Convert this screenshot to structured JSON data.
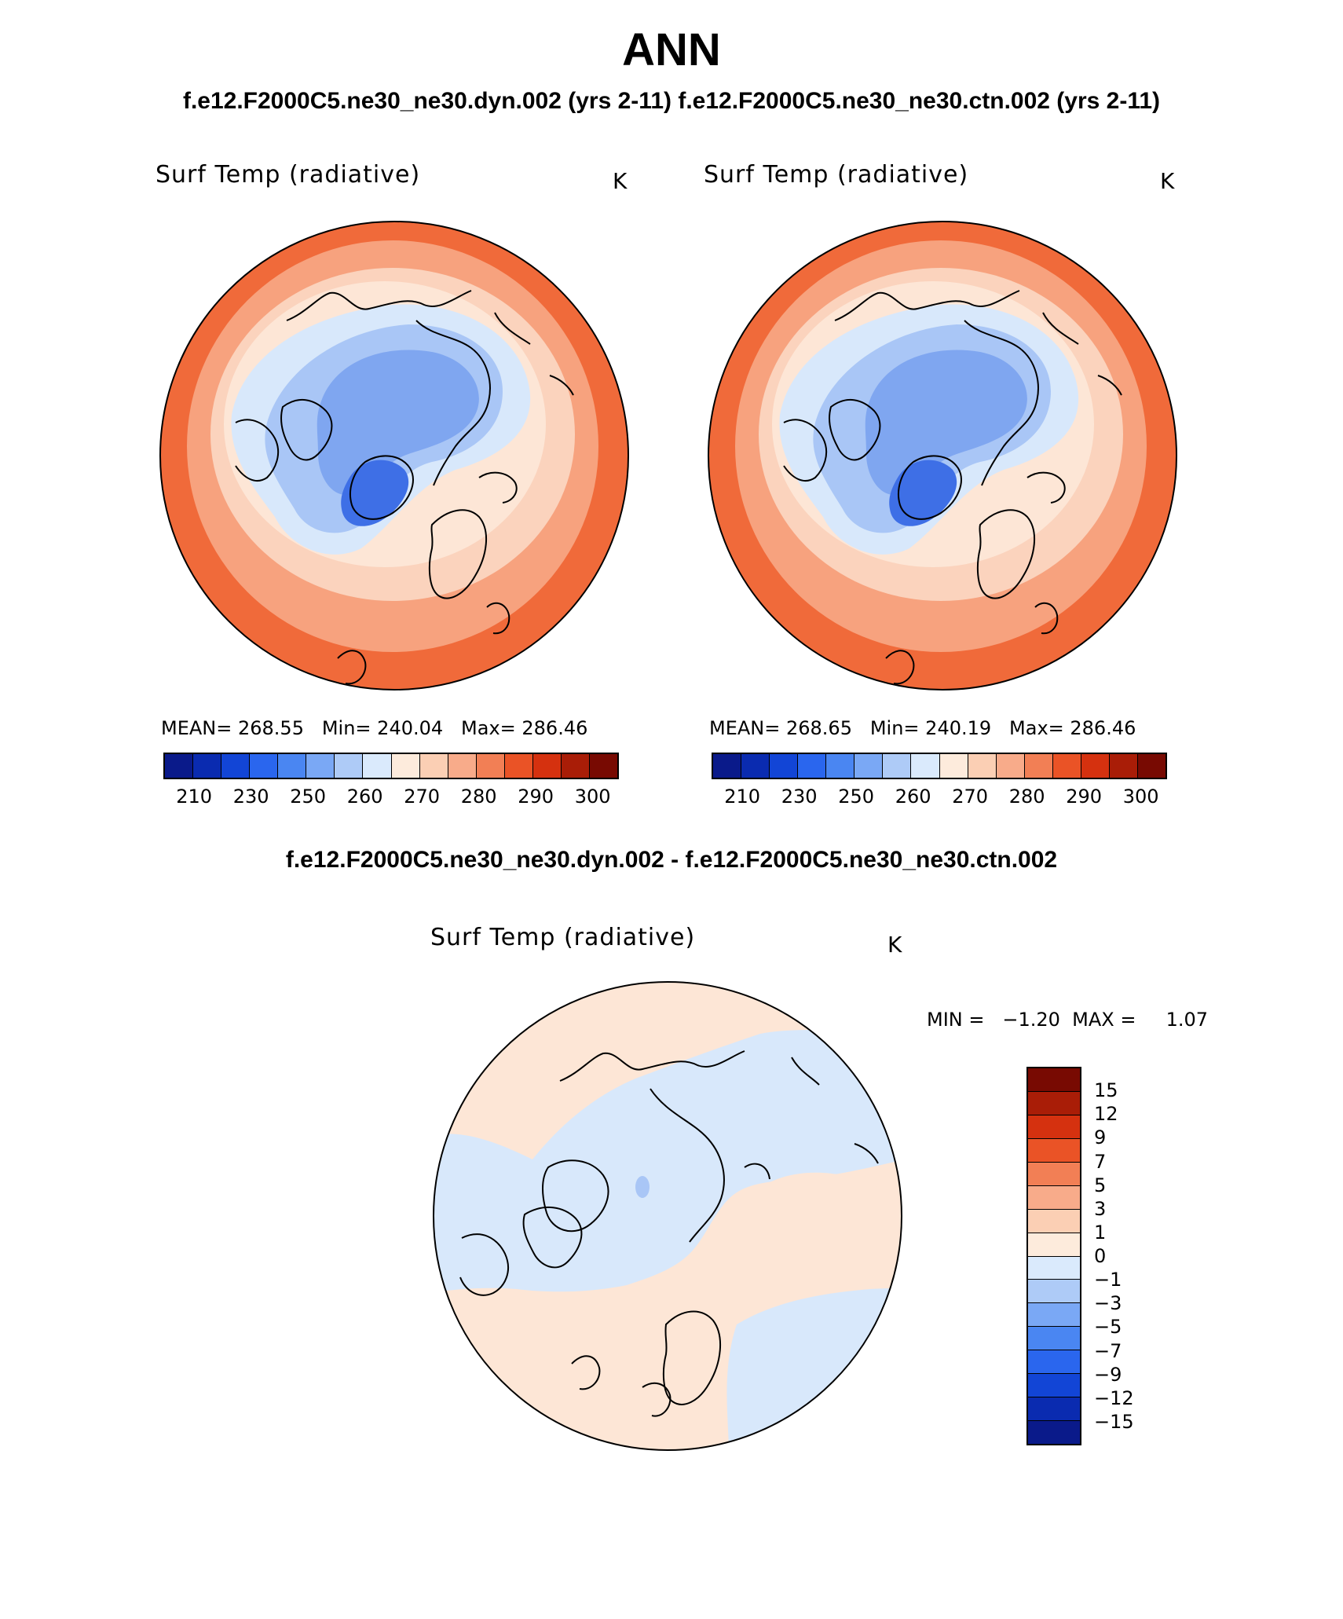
{
  "page": {
    "title": "ANN",
    "subtitle": "f.e12.F2000C5.ne30_ne30.dyn.002 (yrs 2-11)  f.e12.F2000C5.ne30_ne30.ctn.002 (yrs 2-11)",
    "diff_title": "f.e12.F2000C5.ne30_ne30.dyn.002 - f.e12.F2000C5.ne30_ne30.ctn.002"
  },
  "panels": [
    {
      "title": "Surf Temp (radiative)",
      "unit": "K",
      "stats": "MEAN= 268.55   Min= 240.04   Max= 286.46"
    },
    {
      "title": "Surf Temp (radiative)",
      "unit": "K",
      "stats": "MEAN= 268.65   Min= 240.19   Max= 286.46"
    }
  ],
  "abs_colorbar": {
    "colors": [
      "#0a1a8a",
      "#0a2bb0",
      "#1245d6",
      "#2a66ee",
      "#4a86f2",
      "#7aa8f5",
      "#aecbf7",
      "#daeafc",
      "#fdebdc",
      "#fbcfb4",
      "#f8ab8a",
      "#f27f55",
      "#ea5326",
      "#d5310f",
      "#a91d07",
      "#780a02"
    ],
    "labels": [
      "210",
      "230",
      "250",
      "260",
      "270",
      "280",
      "290",
      "300"
    ]
  },
  "diff_panel": {
    "title": "Surf Temp (radiative)",
    "unit": "K",
    "minmax": "MIN =   −1.20  MAX =     1.07"
  },
  "diff_colorbar": {
    "colors_top_to_bottom": [
      "#780a02",
      "#a91d07",
      "#d5310f",
      "#ea5326",
      "#f27f55",
      "#f8ab8a",
      "#fbcfb4",
      "#fdebdc",
      "#daeafc",
      "#aecbf7",
      "#7aa8f5",
      "#4a86f2",
      "#2a66ee",
      "#1245d6",
      "#0a2bb0",
      "#0a1a8a"
    ],
    "labels": [
      "15",
      "12",
      "9",
      "7",
      "5",
      "3",
      "1",
      "0",
      "−1",
      "−3",
      "−5",
      "−7",
      "−9",
      "−12",
      "−15"
    ]
  },
  "colors": {
    "warm_edge": "#f06a3a",
    "warm_mid": "#f7a27e",
    "warm_light": "#fbd3bd",
    "neutral_warm": "#fde6d6",
    "cool_light": "#d8e8fb",
    "cool_mid": "#a9c6f6",
    "cool_deep": "#7fa6f0",
    "cool_core": "#3e6fe6",
    "diff_pos": "#fde6d6",
    "diff_neg": "#d8e8fb"
  }
}
